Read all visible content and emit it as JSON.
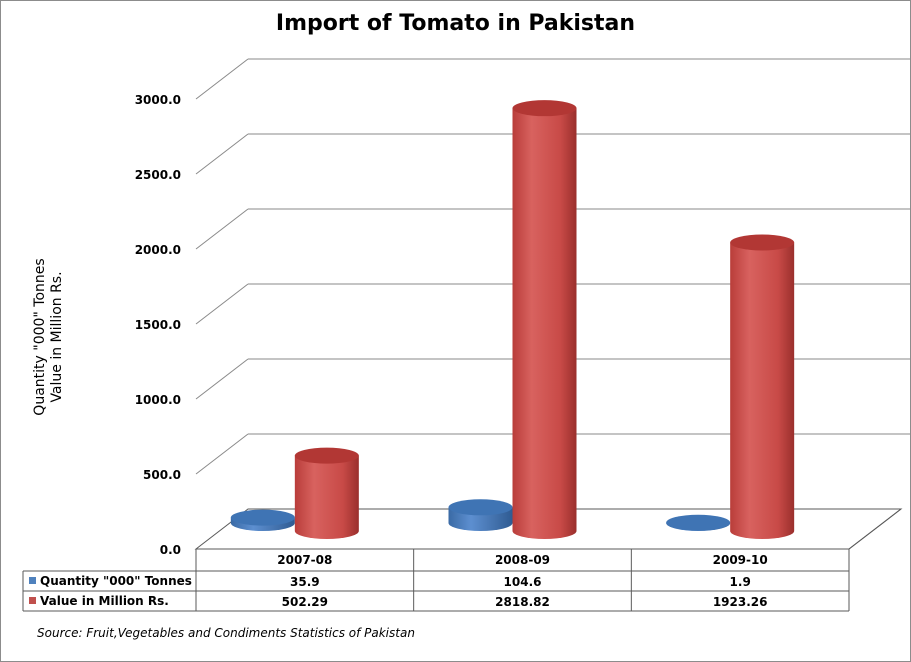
{
  "chart_data": {
    "type": "bar",
    "title": "Import of Tomato in Pakistan",
    "ylabel_lines": [
      "Quantity \"000\" Tonnes",
      "Value in Million Rs."
    ],
    "categories": [
      "2007-08",
      "2008-09",
      "2009-10"
    ],
    "series": [
      {
        "name": "Quantity \"000\" Tonnes",
        "values": [
          35.9,
          104.6,
          1.9
        ],
        "value_labels": [
          "35.9",
          "104.6",
          "1.9"
        ],
        "color": "#4f81bd"
      },
      {
        "name": "Value in Million Rs.",
        "values": [
          502.29,
          2818.82,
          1923.26
        ],
        "value_labels": [
          "502.29",
          "2818.82",
          "1923.26"
        ],
        "color": "#c0504d"
      }
    ],
    "yticks": [
      "0.0",
      "500.0",
      "1000.0",
      "1500.0",
      "2000.0",
      "2500.0",
      "3000.0"
    ],
    "ylim": [
      0,
      3000
    ],
    "grid": true,
    "legend": "data-table-below",
    "source": "Source: Fruit,Vegetables and Condiments Statistics of Pakistan"
  }
}
